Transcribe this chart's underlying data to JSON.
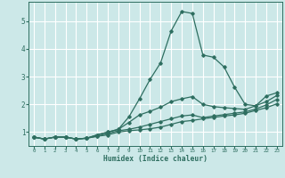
{
  "background_color": "#cce8e8",
  "grid_color": "#ffffff",
  "line_color": "#2e6e60",
  "marker_color": "#2e6e60",
  "xlabel": "Humidex (Indice chaleur)",
  "xlim": [
    -0.5,
    23.5
  ],
  "ylim": [
    0.5,
    5.7
  ],
  "xticks": [
    0,
    1,
    2,
    3,
    4,
    5,
    6,
    7,
    8,
    9,
    10,
    11,
    12,
    13,
    14,
    15,
    16,
    17,
    18,
    19,
    20,
    21,
    22,
    23
  ],
  "yticks": [
    1,
    2,
    3,
    4,
    5
  ],
  "curve1_x": [
    0,
    1,
    2,
    3,
    4,
    5,
    6,
    7,
    8,
    9,
    10,
    11,
    12,
    13,
    14,
    15,
    16,
    17,
    18,
    19,
    20,
    21,
    22,
    23
  ],
  "curve1_y": [
    0.82,
    0.75,
    0.82,
    0.82,
    0.75,
    0.78,
    0.9,
    1.0,
    1.1,
    1.55,
    2.2,
    2.9,
    3.5,
    4.65,
    5.35,
    5.28,
    3.78,
    3.7,
    3.35,
    2.62,
    2.0,
    1.95,
    2.3,
    2.42
  ],
  "curve2_x": [
    0,
    1,
    2,
    3,
    4,
    5,
    6,
    7,
    8,
    9,
    10,
    11,
    12,
    13,
    14,
    15,
    16,
    17,
    18,
    19,
    20,
    21,
    22,
    23
  ],
  "curve2_y": [
    0.82,
    0.75,
    0.82,
    0.82,
    0.75,
    0.78,
    0.9,
    1.0,
    1.1,
    1.35,
    1.62,
    1.75,
    1.9,
    2.1,
    2.2,
    2.28,
    2.0,
    1.92,
    1.88,
    1.85,
    1.82,
    1.95,
    2.1,
    2.32
  ],
  "curve3_x": [
    0,
    1,
    2,
    3,
    4,
    5,
    6,
    7,
    8,
    9,
    10,
    11,
    12,
    13,
    14,
    15,
    16,
    17,
    18,
    19,
    20,
    21,
    22,
    23
  ],
  "curve3_y": [
    0.82,
    0.75,
    0.82,
    0.82,
    0.75,
    0.78,
    0.85,
    0.95,
    1.05,
    1.1,
    1.18,
    1.28,
    1.38,
    1.48,
    1.58,
    1.62,
    1.52,
    1.58,
    1.63,
    1.68,
    1.73,
    1.83,
    1.98,
    2.18
  ],
  "curve4_x": [
    0,
    1,
    2,
    3,
    4,
    5,
    6,
    7,
    8,
    9,
    10,
    11,
    12,
    13,
    14,
    15,
    16,
    17,
    18,
    19,
    20,
    21,
    22,
    23
  ],
  "curve4_y": [
    0.82,
    0.75,
    0.82,
    0.82,
    0.75,
    0.78,
    0.85,
    0.9,
    1.0,
    1.05,
    1.08,
    1.12,
    1.18,
    1.28,
    1.38,
    1.42,
    1.48,
    1.53,
    1.58,
    1.62,
    1.68,
    1.78,
    1.88,
    2.02
  ]
}
